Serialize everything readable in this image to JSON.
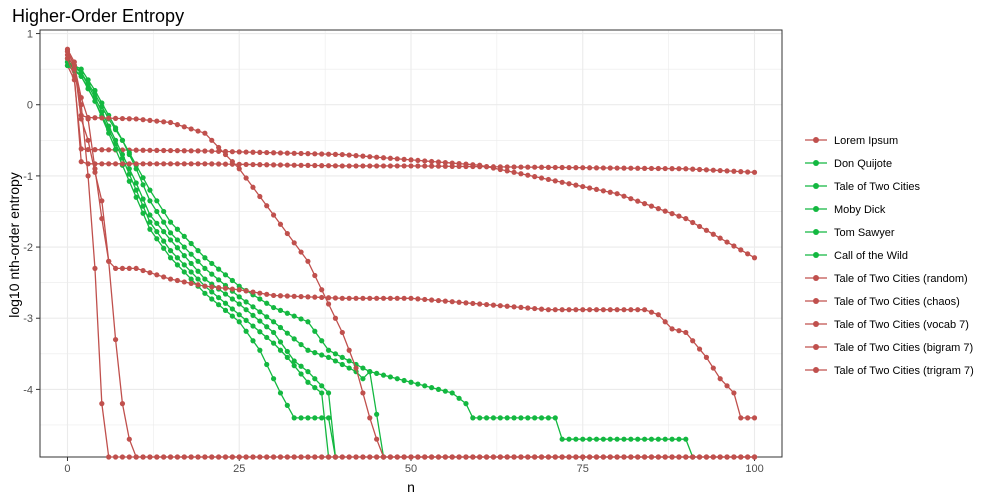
{
  "chart_data": {
    "type": "line",
    "title": "Higher-Order Entropy",
    "xlabel": "n",
    "ylabel": "log10 nth-order entropy",
    "xlim": [
      -4,
      104
    ],
    "ylim": [
      -4.95,
      1.05
    ],
    "x_ticks": [
      0,
      25,
      50,
      75,
      100
    ],
    "x_tick_labels": [
      "0",
      "25",
      "50",
      "75",
      "100"
    ],
    "y_ticks": [
      1,
      0,
      -1,
      -2,
      -3,
      -4
    ],
    "y_tick_labels": [
      "1",
      "0",
      "-1",
      "-2",
      "-3",
      "-4"
    ],
    "grid": true,
    "legend_position": "right",
    "colors": {
      "red": "#c0504d",
      "green": "#13b840",
      "panel_border": "#333333",
      "grid": "#ebebeb"
    },
    "series": [
      {
        "name": "Lorem Ipsum",
        "color": "#c0504d",
        "points": [
          [
            0,
            0.55
          ],
          [
            1,
            0.35
          ],
          [
            2,
            -0.62
          ],
          [
            3,
            -0.63
          ],
          [
            20,
            -0.65
          ],
          [
            40,
            -0.7
          ],
          [
            60,
            -0.85
          ],
          [
            80,
            -1.25
          ],
          [
            90,
            -1.6
          ],
          [
            100,
            -2.15
          ]
        ]
      },
      {
        "name": "Don Quijote",
        "color": "#13b840",
        "points": [
          [
            0,
            0.6
          ],
          [
            2,
            0.45
          ],
          [
            4,
            0.15
          ],
          [
            6,
            -0.2
          ],
          [
            8,
            -0.5
          ],
          [
            10,
            -0.85
          ],
          [
            12,
            -1.2
          ],
          [
            15,
            -1.65
          ],
          [
            20,
            -2.15
          ],
          [
            25,
            -2.55
          ],
          [
            30,
            -2.85
          ],
          [
            35,
            -3.05
          ],
          [
            38,
            -3.45
          ],
          [
            40,
            -3.55
          ],
          [
            44,
            -3.75
          ],
          [
            50,
            -3.9
          ],
          [
            56,
            -4.05
          ],
          [
            58,
            -4.2
          ],
          [
            59,
            -4.4
          ],
          [
            71,
            -4.4
          ],
          [
            72,
            -4.7
          ],
          [
            90,
            -4.7
          ],
          [
            91,
            -4.95
          ]
        ]
      },
      {
        "name": "Tale of Two Cities",
        "color": "#13b840",
        "points": [
          [
            0,
            0.6
          ],
          [
            2,
            0.5
          ],
          [
            4,
            0.2
          ],
          [
            6,
            -0.15
          ],
          [
            8,
            -0.5
          ],
          [
            10,
            -0.9
          ],
          [
            12,
            -1.35
          ],
          [
            15,
            -1.8
          ],
          [
            20,
            -2.3
          ],
          [
            25,
            -2.7
          ],
          [
            30,
            -3.05
          ],
          [
            35,
            -3.45
          ],
          [
            38,
            -3.55
          ],
          [
            42,
            -3.75
          ],
          [
            43,
            -3.85
          ],
          [
            44,
            -3.75
          ],
          [
            46,
            -4.95
          ]
        ]
      },
      {
        "name": "Moby Dick",
        "color": "#13b840",
        "points": [
          [
            0,
            0.65
          ],
          [
            2,
            0.45
          ],
          [
            4,
            0.1
          ],
          [
            6,
            -0.3
          ],
          [
            8,
            -0.7
          ],
          [
            10,
            -1.1
          ],
          [
            12,
            -1.55
          ],
          [
            15,
            -1.9
          ],
          [
            20,
            -2.45
          ],
          [
            25,
            -2.8
          ],
          [
            30,
            -3.2
          ],
          [
            33,
            -3.6
          ],
          [
            35,
            -3.75
          ],
          [
            38,
            -4.05
          ],
          [
            39,
            -4.95
          ]
        ]
      },
      {
        "name": "Tom Sawyer",
        "color": "#13b840",
        "points": [
          [
            0,
            0.6
          ],
          [
            2,
            0.4
          ],
          [
            4,
            0.05
          ],
          [
            6,
            -0.35
          ],
          [
            8,
            -0.75
          ],
          [
            10,
            -1.2
          ],
          [
            12,
            -1.65
          ],
          [
            15,
            -2.05
          ],
          [
            20,
            -2.55
          ],
          [
            25,
            -2.95
          ],
          [
            30,
            -3.35
          ],
          [
            32,
            -3.55
          ],
          [
            35,
            -3.9
          ],
          [
            37,
            -4.05
          ],
          [
            38,
            -4.95
          ]
        ]
      },
      {
        "name": "Call of the Wild",
        "color": "#13b840",
        "points": [
          [
            0,
            0.55
          ],
          [
            2,
            0.4
          ],
          [
            4,
            0.05
          ],
          [
            6,
            -0.4
          ],
          [
            8,
            -0.85
          ],
          [
            10,
            -1.3
          ],
          [
            12,
            -1.75
          ],
          [
            15,
            -2.15
          ],
          [
            20,
            -2.65
          ],
          [
            25,
            -3.05
          ],
          [
            28,
            -3.45
          ],
          [
            31,
            -4.05
          ],
          [
            33,
            -4.4
          ],
          [
            38,
            -4.4
          ],
          [
            39,
            -4.95
          ]
        ]
      },
      {
        "name": "Tale of Two Cities (random)",
        "color": "#c0504d",
        "points": [
          [
            0,
            0.65
          ],
          [
            1,
            0.4
          ],
          [
            2,
            -0.8
          ],
          [
            3,
            -0.83
          ],
          [
            20,
            -0.83
          ],
          [
            40,
            -0.86
          ],
          [
            50,
            -0.86
          ],
          [
            70,
            -0.88
          ],
          [
            90,
            -0.9
          ],
          [
            100,
            -0.95
          ]
        ]
      },
      {
        "name": "Tale of Two Cities (chaos)",
        "color": "#c0504d",
        "points": [
          [
            0,
            0.75
          ],
          [
            1,
            0.55
          ],
          [
            2,
            0.1
          ],
          [
            3,
            -0.2
          ],
          [
            5,
            -1.6
          ],
          [
            6,
            -2.2
          ],
          [
            7,
            -3.3
          ],
          [
            8,
            -4.2
          ],
          [
            9,
            -4.7
          ],
          [
            10,
            -4.95
          ],
          [
            100,
            -4.95
          ]
        ]
      },
      {
        "name": "Tale of Two Cities (vocab 7)",
        "color": "#c0504d",
        "points": [
          [
            0,
            0.78
          ],
          [
            1,
            0.6
          ],
          [
            2,
            -0.15
          ],
          [
            3,
            -0.18
          ],
          [
            10,
            -0.2
          ],
          [
            15,
            -0.25
          ],
          [
            20,
            -0.4
          ],
          [
            25,
            -0.9
          ],
          [
            30,
            -1.55
          ],
          [
            35,
            -2.2
          ],
          [
            40,
            -3.2
          ],
          [
            42,
            -3.7
          ],
          [
            44,
            -4.4
          ],
          [
            45,
            -4.7
          ],
          [
            46,
            -4.95
          ],
          [
            100,
            -4.95
          ]
        ]
      },
      {
        "name": "Tale of Two Cities (bigram 7)",
        "color": "#c0504d",
        "points": [
          [
            0,
            0.7
          ],
          [
            1,
            0.5
          ],
          [
            2,
            0.0
          ],
          [
            3,
            -1.0
          ],
          [
            4,
            -2.3
          ],
          [
            5,
            -4.2
          ],
          [
            6,
            -4.95
          ],
          [
            100,
            -4.95
          ]
        ]
      },
      {
        "name": "Tale of Two Cities (trigram 7)",
        "color": "#c0504d",
        "points": [
          [
            0,
            0.75
          ],
          [
            1,
            0.55
          ],
          [
            2,
            -0.2
          ],
          [
            3,
            -0.5
          ],
          [
            4,
            -0.95
          ],
          [
            5,
            -1.35
          ],
          [
            6,
            -2.2
          ],
          [
            7,
            -2.3
          ],
          [
            10,
            -2.3
          ],
          [
            15,
            -2.45
          ],
          [
            20,
            -2.55
          ],
          [
            25,
            -2.6
          ],
          [
            30,
            -2.68
          ],
          [
            40,
            -2.72
          ],
          [
            50,
            -2.72
          ],
          [
            60,
            -2.8
          ],
          [
            70,
            -2.88
          ],
          [
            84,
            -2.88
          ],
          [
            86,
            -2.95
          ],
          [
            88,
            -3.15
          ],
          [
            90,
            -3.2
          ],
          [
            93,
            -3.55
          ],
          [
            95,
            -3.85
          ],
          [
            96,
            -3.95
          ],
          [
            97,
            -4.05
          ],
          [
            98,
            -4.4
          ],
          [
            100,
            -4.4
          ]
        ]
      }
    ]
  }
}
